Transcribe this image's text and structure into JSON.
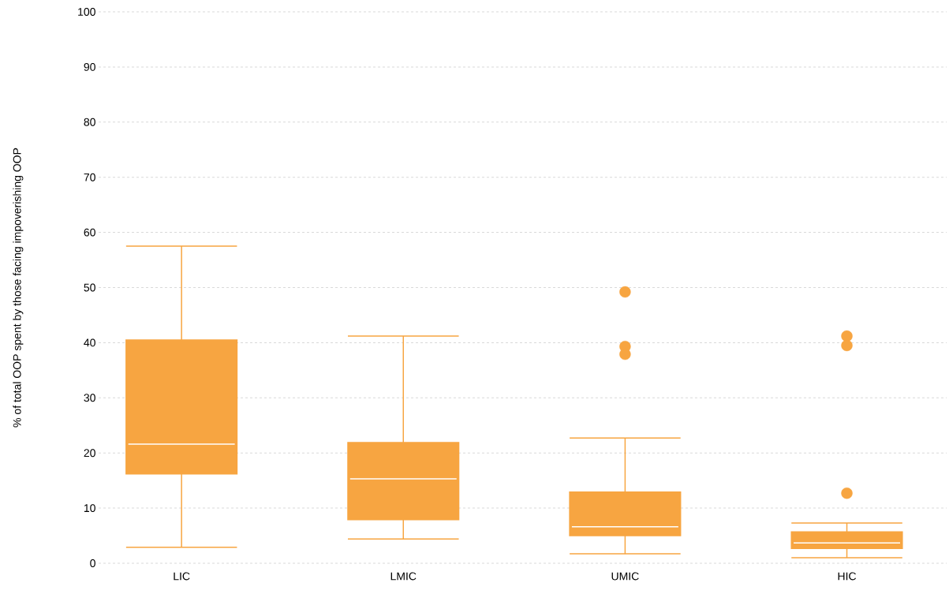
{
  "chart_data": {
    "type": "box",
    "ylabel": "% of total OOP spent by those facing impoverishing OOP",
    "categories": [
      "LIC",
      "LMIC",
      "UMIC",
      "HIC"
    ],
    "color": "#f7a541",
    "boxes": [
      {
        "low": 2.9,
        "q1": 16.2,
        "median": 21.6,
        "q3": 40.5,
        "high": 57.5
      },
      {
        "low": 4.4,
        "q1": 7.9,
        "median": 15.3,
        "q3": 21.9,
        "high": 41.2
      },
      {
        "low": 1.7,
        "q1": 5.0,
        "median": 6.6,
        "q3": 12.9,
        "high": 22.7,
        "outliers": [
          49.2,
          39.3,
          37.9
        ]
      },
      {
        "low": 1.0,
        "q1": 2.7,
        "median": 3.7,
        "q3": 5.7,
        "high": 7.3,
        "outliers": [
          41.2,
          39.5,
          12.7
        ]
      }
    ],
    "ylim": [
      0,
      100
    ],
    "yticks": [
      0,
      10,
      20,
      30,
      40,
      50,
      60,
      70,
      80,
      90,
      100
    ],
    "grid": "y"
  }
}
